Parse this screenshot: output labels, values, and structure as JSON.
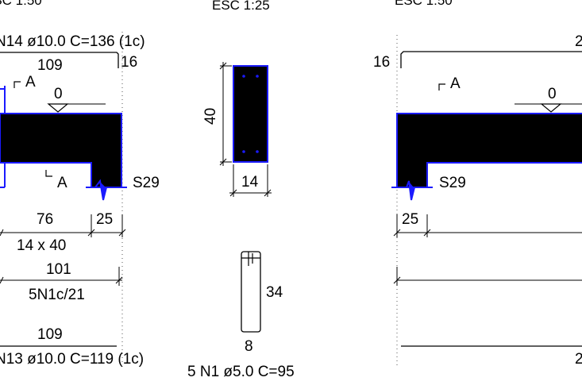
{
  "labels": {
    "scale_left": "ESC 1:50",
    "scale_center": "ESC 1:25",
    "scale_right": "ESC 1:50",
    "top_bar_spec": "N14 ø10.0 C=136 (1c)",
    "dim_109_top": "109",
    "dim_16_left": "16",
    "section_a_top": "A",
    "section_a_bottom": "A",
    "level_left": "0",
    "support_left": "S29",
    "dim_76": "76",
    "dim_25_left": "25",
    "beam_section": "14 x 40",
    "dim_101": "101",
    "stirrups_left": "5N1c/21",
    "dim_109_bottom": "109",
    "bottom_bar_spec": "N13 ø10.0 C=119 (1c)",
    "section_height": "40",
    "section_width": "14",
    "stirrup_height": "34",
    "stirrup_width": "8",
    "stirrup_spec": "5 N1 ø5.0 C=95",
    "dim_16_right": "16",
    "right_top_partial": "2",
    "section_a_right": "A",
    "level_right": "0",
    "support_right": "S29",
    "dim_25_right": "25",
    "right_bottom_partial": "2"
  },
  "colors": {
    "concrete": "#000000",
    "outline": "#1a1aff",
    "line": "#000000"
  }
}
